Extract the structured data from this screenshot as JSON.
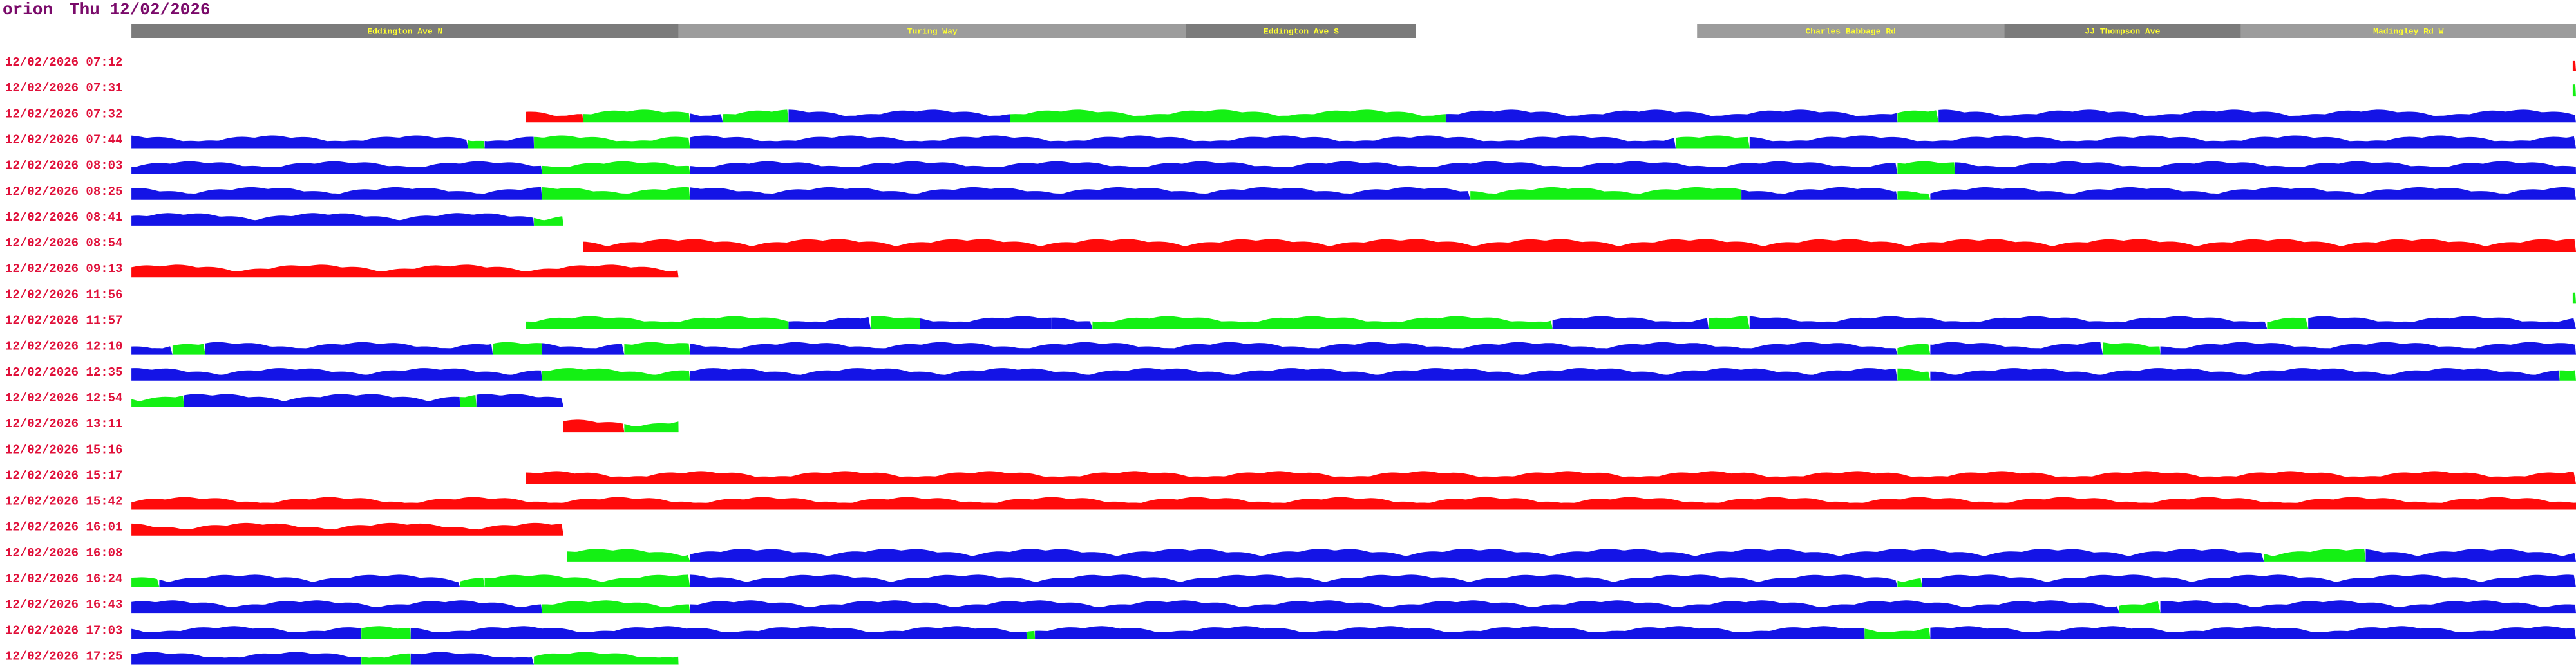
{
  "header": {
    "host": "orion",
    "date": "Thu 12/02/2026"
  },
  "roads": [
    "Eddington Ave N",
    "Turing Way",
    "Eddington Ave S",
    "Charles Babbage Rd",
    "JJ Thompson Ave",
    "Madingley Rd W"
  ],
  "rows": [
    "12/02/2026 07:12",
    "12/02/2026 07:31",
    "12/02/2026 07:32",
    "12/02/2026 07:44",
    "12/02/2026 08:03",
    "12/02/2026 08:25",
    "12/02/2026 08:41",
    "12/02/2026 08:54",
    "12/02/2026 09:13",
    "12/02/2026 11:56",
    "12/02/2026 11:57",
    "12/02/2026 12:10",
    "12/02/2026 12:35",
    "12/02/2026 12:54",
    "12/02/2026 13:11",
    "12/02/2026 15:16",
    "12/02/2026 15:17",
    "12/02/2026 15:42",
    "12/02/2026 16:01",
    "12/02/2026 16:08",
    "12/02/2026 16:24",
    "12/02/2026 16:43",
    "12/02/2026 17:03",
    "12/02/2026 17:25"
  ]
}
